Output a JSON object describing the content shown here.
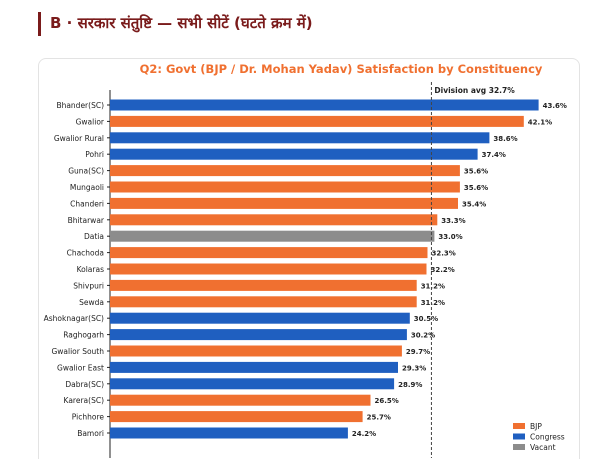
{
  "section": {
    "title": "B · सरकार संतुष्टि — सभी सीटें (घटते क्रम में)"
  },
  "colors": {
    "bjp": "#f07030",
    "congress": "#1f5fc0",
    "vacant": "#8c8c8c",
    "title": "#f07030",
    "section": "#7a1b1b"
  },
  "chart_data": {
    "type": "bar",
    "orientation": "horizontal",
    "title": "Q2: Govt (BJP / Dr. Mohan Yadav) Satisfaction by Constituency",
    "xlabel": "",
    "ylabel": "",
    "xlim": [
      0,
      47
    ],
    "grid": false,
    "legend_position": "bottom-right",
    "legend": [
      {
        "name": "BJP",
        "color": "#f07030"
      },
      {
        "name": "Congress",
        "color": "#1f5fc0"
      },
      {
        "name": "Vacant",
        "color": "#8c8c8c"
      }
    ],
    "reference_line": {
      "value": 32.7,
      "label": "Division avg 32.7%"
    },
    "bars": [
      {
        "label": "Bhander(SC)",
        "value": 43.6,
        "value_label": "43.6%",
        "party": "Congress"
      },
      {
        "label": "Gwalior",
        "value": 42.1,
        "value_label": "42.1%",
        "party": "BJP"
      },
      {
        "label": "Gwalior Rural",
        "value": 38.6,
        "value_label": "38.6%",
        "party": "Congress"
      },
      {
        "label": "Pohri",
        "value": 37.4,
        "value_label": "37.4%",
        "party": "Congress"
      },
      {
        "label": "Guna(SC)",
        "value": 35.6,
        "value_label": "35.6%",
        "party": "BJP"
      },
      {
        "label": "Mungaoli",
        "value": 35.6,
        "value_label": "35.6%",
        "party": "BJP"
      },
      {
        "label": "Chanderi",
        "value": 35.4,
        "value_label": "35.4%",
        "party": "BJP"
      },
      {
        "label": "Bhitarwar",
        "value": 33.3,
        "value_label": "33.3%",
        "party": "BJP"
      },
      {
        "label": "Datia",
        "value": 33.0,
        "value_label": "33.0%",
        "party": "Vacant"
      },
      {
        "label": "Chachoda",
        "value": 32.3,
        "value_label": "32.3%",
        "party": "BJP"
      },
      {
        "label": "Kolaras",
        "value": 32.2,
        "value_label": "32.2%",
        "party": "BJP"
      },
      {
        "label": "Shivpuri",
        "value": 31.2,
        "value_label": "31.2%",
        "party": "BJP"
      },
      {
        "label": "Sewda",
        "value": 31.2,
        "value_label": "31.2%",
        "party": "BJP"
      },
      {
        "label": "Ashoknagar(SC)",
        "value": 30.5,
        "value_label": "30.5%",
        "party": "Congress"
      },
      {
        "label": "Raghogarh",
        "value": 30.2,
        "value_label": "30.2%",
        "party": "Congress"
      },
      {
        "label": "Gwalior South",
        "value": 29.7,
        "value_label": "29.7%",
        "party": "BJP"
      },
      {
        "label": "Gwalior East",
        "value": 29.3,
        "value_label": "29.3%",
        "party": "Congress"
      },
      {
        "label": "Dabra(SC)",
        "value": 28.9,
        "value_label": "28.9%",
        "party": "Congress"
      },
      {
        "label": "Karera(SC)",
        "value": 26.5,
        "value_label": "26.5%",
        "party": "BJP"
      },
      {
        "label": "Pichhore",
        "value": 25.7,
        "value_label": "25.7%",
        "party": "BJP"
      },
      {
        "label": "Bamori",
        "value": 24.2,
        "value_label": "24.2%",
        "party": "Congress"
      }
    ]
  }
}
